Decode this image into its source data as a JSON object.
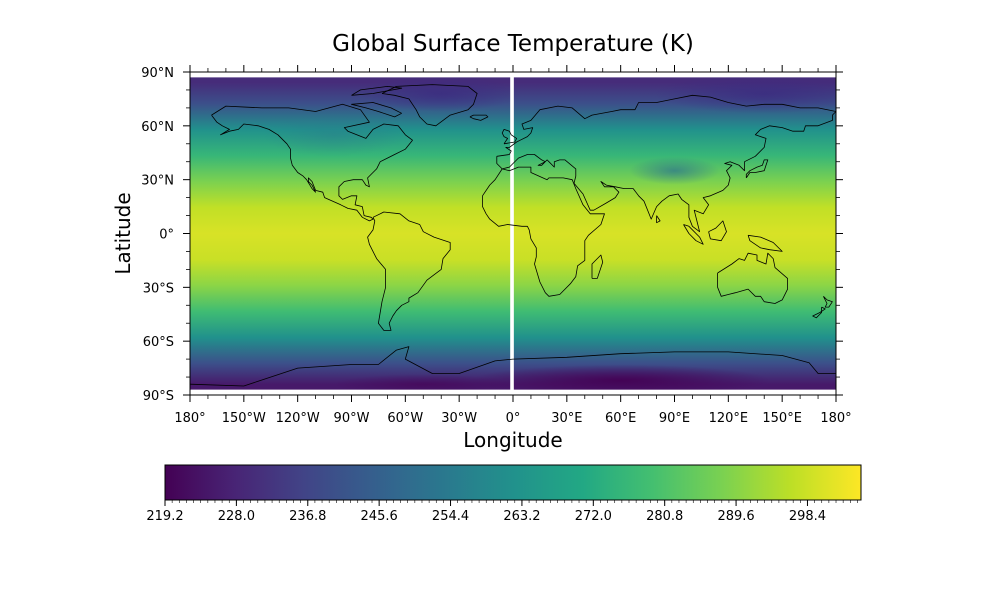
{
  "chart_data": {
    "type": "heatmap",
    "title": "Global Surface Temperature (K)",
    "xlabel": "Longitude",
    "ylabel": "Latitude",
    "xlim": [
      -180,
      180
    ],
    "ylim": [
      -90,
      90
    ],
    "colormap": "viridis",
    "x_ticks": [
      {
        "value": -180,
        "label": "180°"
      },
      {
        "value": -150,
        "label": "150°W"
      },
      {
        "value": -120,
        "label": "120°W"
      },
      {
        "value": -90,
        "label": "90°W"
      },
      {
        "value": -60,
        "label": "60°W"
      },
      {
        "value": -30,
        "label": "30°W"
      },
      {
        "value": 0,
        "label": "0°"
      },
      {
        "value": 30,
        "label": "30°E"
      },
      {
        "value": 60,
        "label": "60°E"
      },
      {
        "value": 90,
        "label": "90°E"
      },
      {
        "value": 120,
        "label": "120°E"
      },
      {
        "value": 150,
        "label": "150°E"
      },
      {
        "value": 180,
        "label": "180°"
      }
    ],
    "y_ticks": [
      {
        "value": 90,
        "label": "90°N"
      },
      {
        "value": 60,
        "label": "60°N"
      },
      {
        "value": 30,
        "label": "30°N"
      },
      {
        "value": 0,
        "label": "0°"
      },
      {
        "value": -30,
        "label": "30°S"
      },
      {
        "value": -60,
        "label": "60°S"
      },
      {
        "value": -90,
        "label": "90°S"
      }
    ],
    "colorbar": {
      "min": 219.2,
      "max": 305.0,
      "ticks": [
        "219.2",
        "228.0",
        "236.8",
        "245.6",
        "254.4",
        "263.2",
        "272.0",
        "280.8",
        "289.6",
        "298.4"
      ]
    },
    "data_gap_longitude": 0,
    "zonal_profile": [
      {
        "lat": 87,
        "value": 230
      },
      {
        "lat": 75,
        "value": 240
      },
      {
        "lat": 60,
        "value": 262
      },
      {
        "lat": 45,
        "value": 276
      },
      {
        "lat": 30,
        "value": 288
      },
      {
        "lat": 15,
        "value": 297
      },
      {
        "lat": 0,
        "value": 300
      },
      {
        "lat": -15,
        "value": 298
      },
      {
        "lat": -30,
        "value": 290
      },
      {
        "lat": -45,
        "value": 278
      },
      {
        "lat": -60,
        "value": 262
      },
      {
        "lat": -75,
        "value": 240
      },
      {
        "lat": -87,
        "value": 225
      }
    ]
  }
}
